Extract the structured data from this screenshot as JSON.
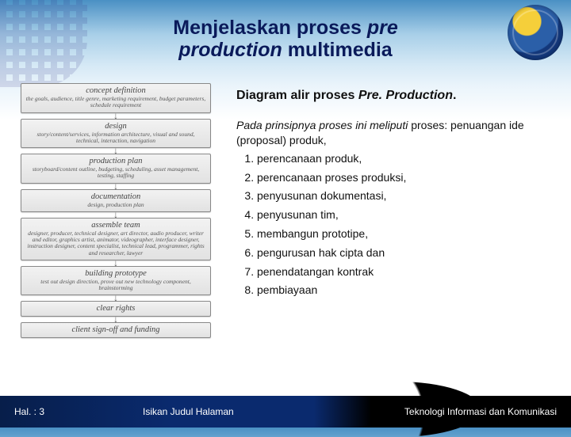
{
  "title_line1_a": "Menjelaskan proses ",
  "title_line1_b": "pre",
  "title_line2_a": "production",
  "title_line2_b": " multimedia",
  "flow": [
    {
      "h": "concept definition",
      "d": "the goals, audience, title genre, marketing requirement, budget parameters, schedule requirement"
    },
    {
      "h": "design",
      "d": "story/content/services, information architecture, visual and sound, technical, interaction, navigation"
    },
    {
      "h": "production plan",
      "d": "storyboard/content outline, budgeting, scheduling, asset management, testing, staffing"
    },
    {
      "h": "documentation",
      "d": "design, production plan"
    },
    {
      "h": "assemble team",
      "d": "designer, producer, technical designer, art director, audio producer, writer and editor, graphics artist, animator, videographer, interface designer, instruction designer, content specialist, technical lead, programmer, rights and researcher, lawyer"
    },
    {
      "h": "building prototype",
      "d": "test out design direction, prove out new technology component, brainstorming"
    },
    {
      "h": "clear rights",
      "d": ""
    },
    {
      "h": "client sign-off and funding",
      "d": ""
    }
  ],
  "subtitle_a": "Diagram alir proses ",
  "subtitle_b": "Pre. Production",
  "subtitle_c": ".",
  "intro_a": "Pada prinsipnya proses ini meliputi ",
  "intro_b": "proses: penuangan ide (proposal) produk,",
  "items": [
    "perencanaan produk,",
    "perencanaan proses produksi,",
    "penyusunan dokumentasi,",
    "penyusunan tim,",
    "membangun prototipe,",
    "pengurusan hak cipta dan",
    "penendatangan kontrak",
    "pembiayaan"
  ],
  "footer": {
    "left": "Hal. : 3",
    "center": "Isikan Judul Halaman",
    "right": "Teknologi Informasi dan Komunikasi"
  }
}
